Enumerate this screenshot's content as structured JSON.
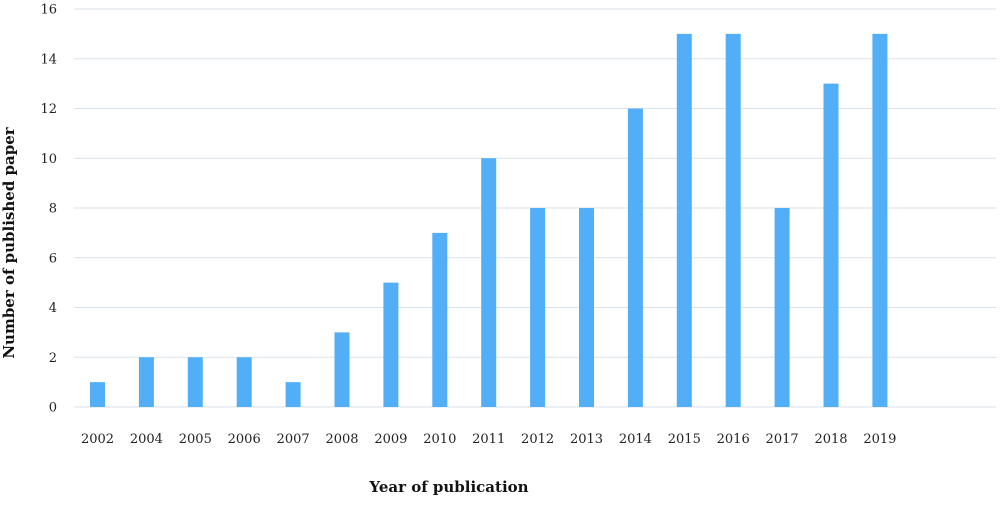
{
  "chart_data": {
    "type": "bar",
    "title": "",
    "xlabel": "Year of publication",
    "ylabel": "Number of published paper",
    "categories": [
      "2002",
      "2004",
      "2005",
      "2006",
      "2007",
      "2008",
      "2009",
      "2010",
      "2011",
      "2012",
      "2013",
      "2014",
      "2015",
      "2016",
      "2017",
      "2018",
      "2019"
    ],
    "values": [
      1,
      2,
      2,
      2,
      1,
      3,
      5,
      7,
      10,
      8,
      8,
      12,
      15,
      15,
      8,
      13,
      15
    ],
    "ylim": [
      0,
      16
    ],
    "yticks": [
      0,
      2,
      4,
      6,
      8,
      10,
      12,
      14,
      16
    ],
    "grid": true,
    "bar_color": "#52aef7",
    "grid_color": "#d9e2ea"
  }
}
